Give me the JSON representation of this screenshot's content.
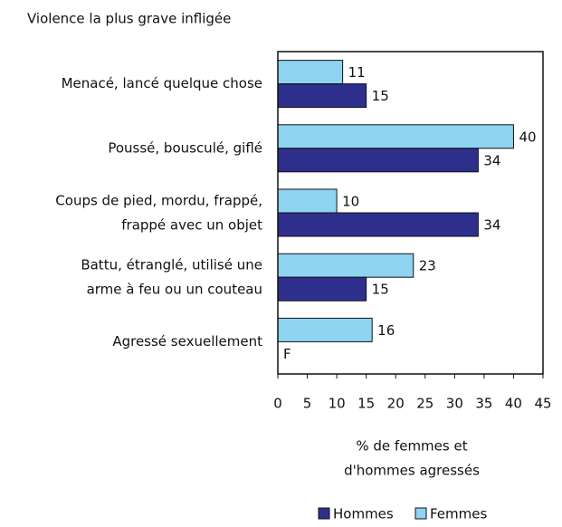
{
  "chart_data": {
    "type": "hbar",
    "title": "Violence la plus grave infligée",
    "categories": [
      "Menacé, lancé quelque chose",
      "Poussé, bousculé, giflé",
      "Coups de pied, mordu, frappé,\nfrappé avec un objet",
      "Battu, étranglé, utilisé une\narme à feu ou un couteau",
      "Agressé sexuellement"
    ],
    "series": [
      {
        "name": "Hommes",
        "color": "#2e2f8c",
        "values": [
          15,
          34,
          34,
          15,
          null
        ],
        "value_labels": [
          "15",
          "34",
          "34",
          "15",
          "F"
        ]
      },
      {
        "name": "Femmes",
        "color": "#8fd3f2",
        "values": [
          11,
          40,
          10,
          23,
          16
        ]
      }
    ],
    "xlabel": "% de femmes et\nd'hommes agressés",
    "xlim": [
      0,
      45
    ],
    "xticks": [
      0,
      5,
      10,
      15,
      20,
      25,
      30,
      35,
      40,
      45
    ],
    "legend": "bottom"
  }
}
